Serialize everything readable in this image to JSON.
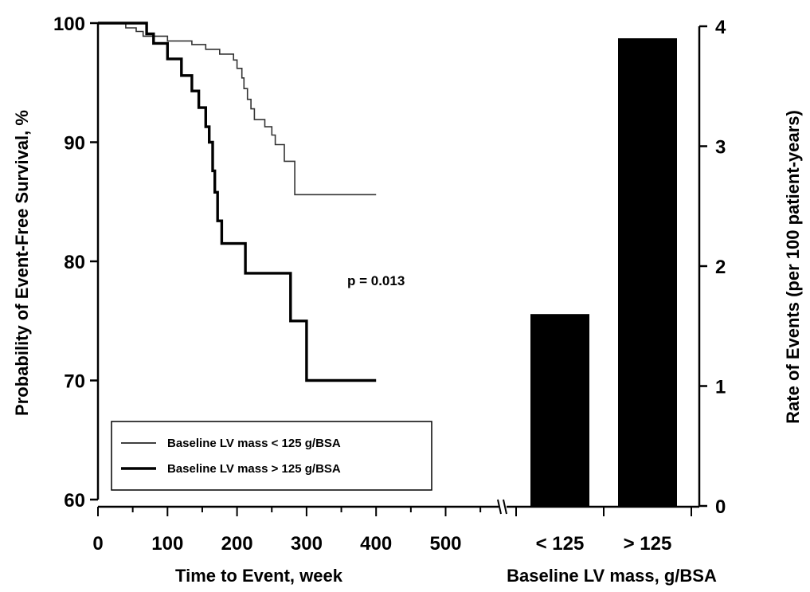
{
  "chart_data": [
    {
      "type": "line",
      "xlabel": "Time to Event, week",
      "ylabel": "Probability of Event-Free Survival, %",
      "xlim": [
        0,
        580
      ],
      "ylim": [
        60,
        100
      ],
      "x_ticks": [
        0,
        100,
        200,
        300,
        400,
        500
      ],
      "y_ticks": [
        60,
        70,
        80,
        90,
        100
      ],
      "legend_placement": "bottom-left",
      "grid": false,
      "annotation": "p = 0.013",
      "series": [
        {
          "name": "Baseline LV mass < 125 g/BSA",
          "line_style": "thin",
          "points": [
            [
              0,
              100
            ],
            [
              30,
              100
            ],
            [
              40,
              99.6
            ],
            [
              55,
              99.3
            ],
            [
              65,
              98.9
            ],
            [
              95,
              98.9
            ],
            [
              100,
              98.5
            ],
            [
              130,
              98.5
            ],
            [
              135,
              98.2
            ],
            [
              150,
              98.2
            ],
            [
              155,
              97.8
            ],
            [
              170,
              97.8
            ],
            [
              175,
              97.4
            ],
            [
              190,
              97.4
            ],
            [
              195,
              96.9
            ],
            [
              200,
              96.2
            ],
            [
              207,
              95.4
            ],
            [
              210,
              94.5
            ],
            [
              215,
              93.6
            ],
            [
              220,
              92.8
            ],
            [
              225,
              91.9
            ],
            [
              235,
              91.9
            ],
            [
              240,
              91.3
            ],
            [
              250,
              90.6
            ],
            [
              255,
              89.8
            ],
            [
              265,
              89.8
            ],
            [
              268,
              88.4
            ],
            [
              280,
              88.4
            ],
            [
              283,
              85.6
            ],
            [
              400,
              85.6
            ]
          ]
        },
        {
          "name": "Baseline LV mass > 125 g/BSA",
          "line_style": "thick",
          "points": [
            [
              0,
              100
            ],
            [
              65,
              100
            ],
            [
              70,
              99.1
            ],
            [
              80,
              98.3
            ],
            [
              100,
              97.0
            ],
            [
              115,
              97.0
            ],
            [
              120,
              95.6
            ],
            [
              135,
              94.3
            ],
            [
              145,
              92.9
            ],
            [
              155,
              91.3
            ],
            [
              160,
              90.0
            ],
            [
              165,
              87.6
            ],
            [
              168,
              85.8
            ],
            [
              172,
              83.4
            ],
            [
              178,
              81.5
            ],
            [
              210,
              81.5
            ],
            [
              212,
              79.0
            ],
            [
              274,
              79.0
            ],
            [
              277,
              75.0
            ],
            [
              298,
              75.0
            ],
            [
              300,
              70.0
            ],
            [
              400,
              70.0
            ]
          ]
        }
      ]
    },
    {
      "type": "bar",
      "xlabel": "Baseline LV mass, g/BSA",
      "ylabel": "Rate of Events (per 100 patient-years)",
      "categories": [
        "< 125",
        "> 125"
      ],
      "values": [
        1.6,
        3.9
      ],
      "ylim": [
        0,
        4
      ],
      "y_ticks": [
        0,
        1,
        2,
        3,
        4
      ],
      "color": "#000000"
    }
  ]
}
